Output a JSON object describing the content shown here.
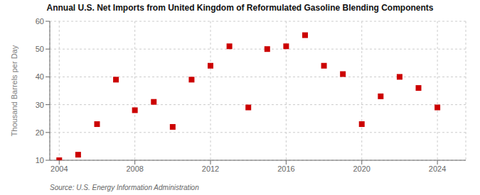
{
  "chart_data": {
    "type": "scatter",
    "title": "Annual U.S. Net Imports from United Kingdom of Reformulated Gasoline Blending Components",
    "ylabel": "Thousand Barrels per Day",
    "source": "Source: U.S. Energy Information Administration",
    "x": [
      2004,
      2005,
      2006,
      2007,
      2008,
      2009,
      2010,
      2011,
      2012,
      2013,
      2014,
      2015,
      2016,
      2017,
      2018,
      2019,
      2020,
      2021,
      2022,
      2023,
      2024
    ],
    "values": [
      10,
      12,
      23,
      39,
      28,
      31,
      22,
      39,
      44,
      51,
      29,
      50,
      51,
      55,
      44,
      41,
      23,
      33,
      40,
      36,
      29
    ],
    "color": "#cc0000",
    "marker": "square",
    "xlim": [
      2003.5,
      2025.5
    ],
    "ylim": [
      10,
      60
    ],
    "xticks": [
      2004,
      2008,
      2012,
      2016,
      2020,
      2024
    ],
    "yticks": [
      10,
      20,
      30,
      40,
      50,
      60
    ],
    "grid": true
  }
}
